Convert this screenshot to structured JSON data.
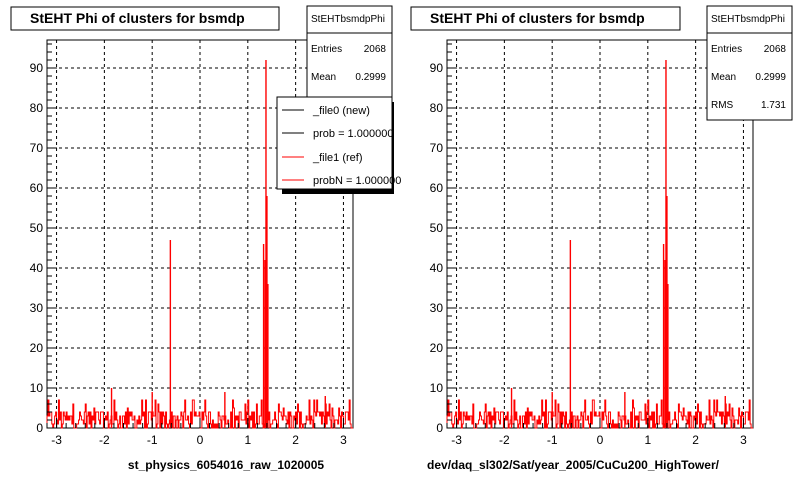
{
  "footer_text": "",
  "legend": {
    "items": [
      {
        "label": "_file0 (new)",
        "color": "#000000"
      },
      {
        "label": "prob = 1.000000",
        "color": "#000000"
      },
      {
        "label": "_file1 (ref)",
        "color": "#ff0000"
      },
      {
        "label": "probN = 1.000000",
        "color": "#ff0000"
      }
    ]
  },
  "chart_data": [
    {
      "type": "bar",
      "title": "StEHT Phi of clusters for bsmdp",
      "xlabel": "st_physics_6054016_raw_1020005",
      "ylabel": "",
      "xlim": [
        -3.2,
        3.2
      ],
      "ylim": [
        0,
        97
      ],
      "xticks": [
        -3,
        -2,
        -1,
        0,
        1,
        2,
        3
      ],
      "yticks": [
        0,
        10,
        20,
        30,
        40,
        50,
        60,
        70,
        80,
        90
      ],
      "grid": true,
      "series_color": "#ff0000",
      "stats": {
        "name": "StEHTbsmdpPhi",
        "rows": [
          {
            "label": "Entries",
            "value": "2068"
          },
          {
            "label": "Mean",
            "value": "0.2999"
          }
        ]
      },
      "x": [
        -0.62,
        1.33,
        1.36,
        1.38,
        1.4,
        1.42,
        -1.85,
        -1.0,
        0.52,
        2.62
      ],
      "values": [
        47,
        46,
        42,
        92,
        58,
        36,
        10,
        9,
        9,
        8
      ]
    },
    {
      "type": "bar",
      "title": "StEHT Phi of clusters for bsmdp",
      "xlabel": "dev/daq_sl302/Sat/year_2005/CuCu200_HighTower/",
      "ylabel": "",
      "xlim": [
        -3.2,
        3.2
      ],
      "ylim": [
        0,
        97
      ],
      "xticks": [
        -3,
        -2,
        -1,
        0,
        1,
        2,
        3
      ],
      "yticks": [
        0,
        10,
        20,
        30,
        40,
        50,
        60,
        70,
        80,
        90
      ],
      "grid": true,
      "series_color": "#ff0000",
      "stats": {
        "name": "StEHTbsmdpPhi",
        "rows": [
          {
            "label": "Entries",
            "value": "2068"
          },
          {
            "label": "Mean",
            "value": "0.2999"
          },
          {
            "label": "RMS",
            "value": "1.731"
          }
        ]
      },
      "x": [
        -0.62,
        1.33,
        1.36,
        1.38,
        1.4,
        1.42,
        -1.85,
        -1.0,
        0.52,
        2.62
      ],
      "values": [
        47,
        46,
        42,
        92,
        58,
        36,
        10,
        9,
        9,
        8
      ]
    }
  ]
}
